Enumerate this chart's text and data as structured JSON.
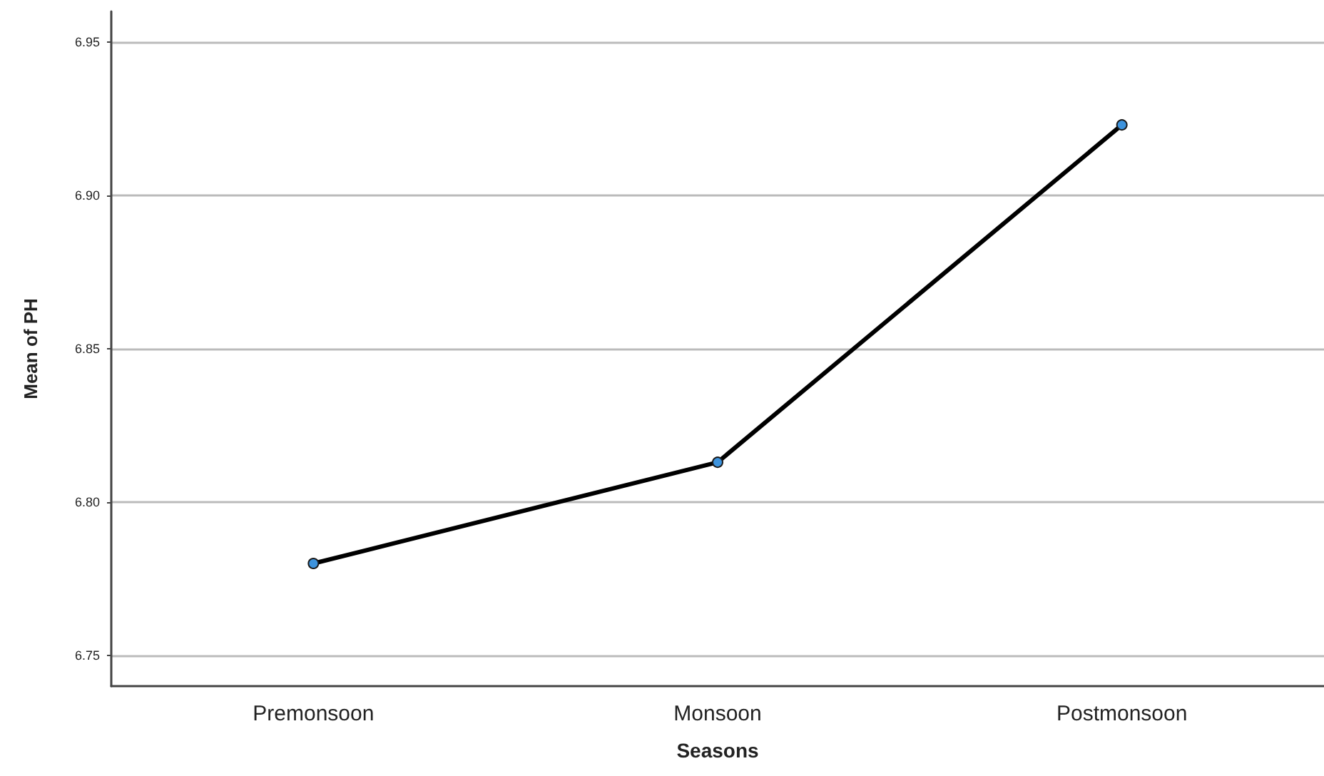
{
  "chart_data": {
    "type": "line",
    "xlabel": "Seasons",
    "ylabel": "Mean of PH",
    "categories": [
      "Premonsoon",
      "Monsoon",
      "Postmonsoon"
    ],
    "series": [
      {
        "color": "#000000",
        "values": [
          6.78,
          6.813,
          6.923
        ]
      }
    ],
    "ylim": [
      6.74,
      6.96
    ],
    "yticks": [
      6.75,
      {
        "value": 6.8,
        "label": "6.80"
      },
      6.85,
      {
        "value": 6.9,
        "label": "6.90"
      },
      6.95
    ],
    "grid": "y",
    "marker": "circle",
    "line_style": "solid"
  }
}
